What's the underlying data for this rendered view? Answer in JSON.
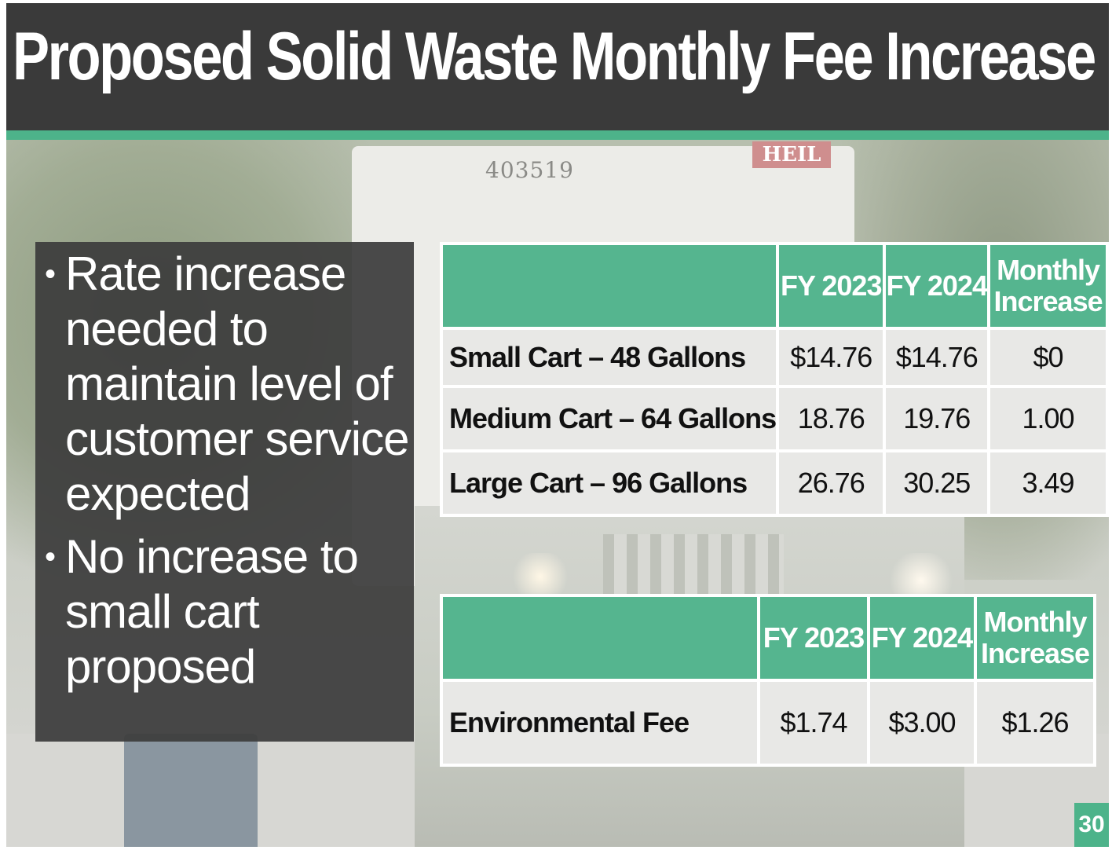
{
  "slide": {
    "title": "Proposed Solid Waste Monthly Fee Increase",
    "page_number": "30",
    "accent_color": "#4db38a",
    "title_bar_color": "#3a3a3a"
  },
  "photo": {
    "truck_number": "403519",
    "truck_brand": "HEIL"
  },
  "bullets": [
    "Rate increase needed to maintain level of customer service expected",
    "No increase to small cart proposed"
  ],
  "cart_table": {
    "columns": [
      "",
      "FY 2023",
      "FY 2024",
      "Monthly Increase"
    ],
    "rows": [
      {
        "label": "Small Cart – 48 Gallons",
        "fy2023": "$14.76",
        "fy2024": "$14.76",
        "increase": "$0"
      },
      {
        "label": "Medium Cart – 64 Gallons",
        "fy2023": "18.76",
        "fy2024": "19.76",
        "increase": "1.00"
      },
      {
        "label": "Large Cart – 96 Gallons",
        "fy2023": "26.76",
        "fy2024": "30.25",
        "increase": "3.49"
      }
    ]
  },
  "env_table": {
    "columns": [
      "",
      "FY 2023",
      "FY 2024",
      "Monthly Increase"
    ],
    "rows": [
      {
        "label": "Environmental Fee",
        "fy2023": "$1.74",
        "fy2024": "$3.00",
        "increase": "$1.26"
      }
    ]
  }
}
